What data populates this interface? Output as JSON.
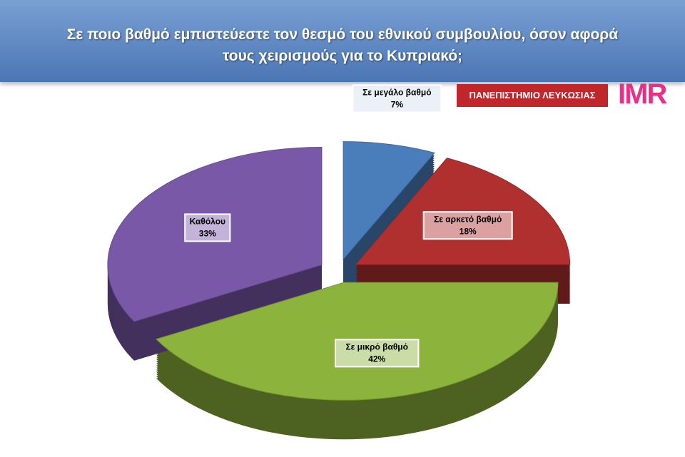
{
  "chart_data": {
    "type": "pie",
    "title": "Σε ποιο βαθμό εμπιστεύεστε τον θεσμό του εθνικού συμβουλίου, όσον αφορά τους χειρισμούς για το Κυπριακό;",
    "categories": [
      "Σε μεγάλο βαθμό",
      "Σε αρκετό βαθμό",
      "Σε μικρό βαθμό",
      "Καθόλου"
    ],
    "values": [
      7,
      18,
      42,
      33
    ],
    "value_labels": [
      "7%",
      "18%",
      "42%",
      "33%"
    ],
    "colors": [
      "#4a7ebb",
      "#b03030",
      "#8cb33c",
      "#7a58a8"
    ]
  },
  "logos": {
    "university": "ΠΑΝΕΠΙΣΤΗΜΙΟ ΛΕΥΚΩΣΙΑΣ",
    "imr": "IMR"
  }
}
